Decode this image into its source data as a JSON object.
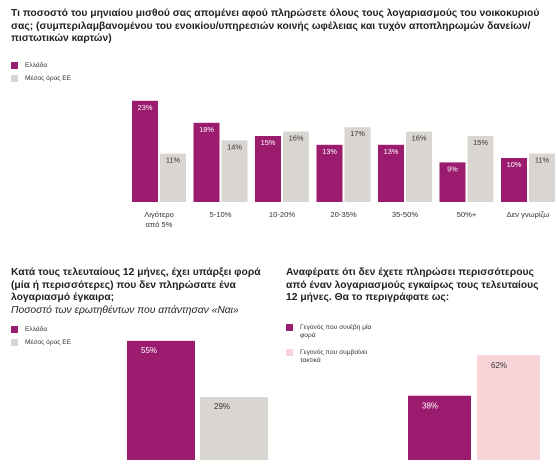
{
  "colors": {
    "greece": "#9b1b6e",
    "eu": "#d9d6d1",
    "rare": "#9b1b6e",
    "frequent": "#f8d4d8"
  },
  "chart_data": [
    {
      "type": "bar",
      "title": "Τι ποσοστό του μηνιαίου μισθού σας απομένει αφού πληρώσετε όλους τους λογαριασμούς του νοικοκυριού σας; (συμπεριλαμβανομένου του ενοικίου/υπηρεσιών κοινής ωφέλειας και τυχόν αποπληρωμών δανείων/πιστωτικών καρτών)",
      "categories": [
        "Λιγότερο από 5%",
        "5-10%",
        "10-20%",
        "20-35%",
        "35-50%",
        "50%+",
        "Δεν γνωρίζω"
      ],
      "series": [
        {
          "name": "Ελλάδα",
          "values": [
            23,
            18,
            15,
            13,
            13,
            9,
            10
          ],
          "labels": [
            "23%",
            "18%",
            "15%",
            "13%",
            "13%",
            "9%",
            "10%"
          ]
        },
        {
          "name": "Μέσος όρος ΕΕ",
          "values": [
            11,
            14,
            16,
            17,
            16,
            15,
            11
          ],
          "labels": [
            "11%",
            "14%",
            "16%",
            "17%",
            "16%",
            "15%",
            "11%"
          ]
        }
      ],
      "ylim": [
        0,
        25
      ],
      "legend": "top-left",
      "grid": false
    },
    {
      "type": "bar",
      "title": "Κατά τους τελευταίους 12 μήνες, έχει υπάρξει φορά (μία ή περισσότερες) που δεν πληρώσατε ένα λογαριασμό έγκαιρα;",
      "subtitle": "Ποσοστό των ερωτηθέντων που απάντησαν «Ναι»",
      "series": [
        {
          "name": "Ελλάδα",
          "values": [
            55
          ],
          "labels": [
            "55%"
          ]
        },
        {
          "name": "Μέσος όρος ΕΕ",
          "values": [
            29
          ],
          "labels": [
            "29%"
          ]
        }
      ],
      "ylim": [
        0,
        60
      ],
      "legend": "left",
      "grid": false
    },
    {
      "type": "bar",
      "title": "Αναφέρατε ότι δεν έχετε πληρώσει περισσότερους από έναν λογαριασμούς εγκαίρως τους τελευταίους 12 μήνες. Θα το περιγράφατε ως:",
      "series": [
        {
          "name": "Γεγονός που συνέβη μία φορά",
          "values": [
            38
          ],
          "labels": [
            "38%"
          ]
        },
        {
          "name": "Γεγονός που συμβαίνει τακτικά",
          "values": [
            62
          ],
          "labels": [
            "62%"
          ]
        }
      ],
      "ylim": [
        0,
        68
      ],
      "legend": "left",
      "grid": false
    }
  ]
}
